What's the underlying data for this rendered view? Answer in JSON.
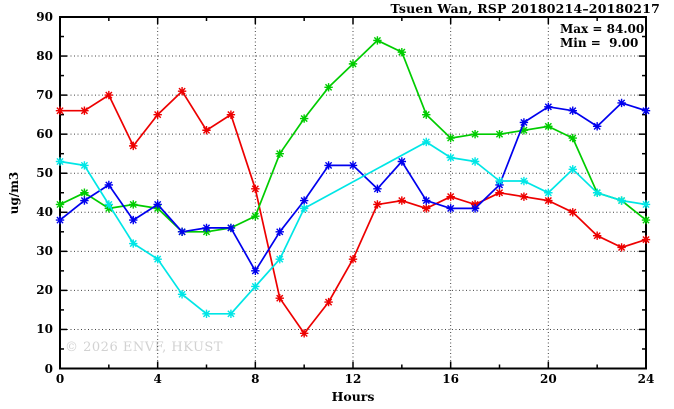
{
  "header": {
    "title": "Tsuen Wan, RSP 20180214–20180217"
  },
  "legend": {
    "max_label": "Max = 84.00",
    "min_label": "Min =  9.00"
  },
  "watermark": {
    "text": "© 2026 ENVF, HKUST",
    "color": "#d2d2d2"
  },
  "axes": {
    "ylabel": "ug/m3",
    "xlabel": "Hours"
  },
  "chart_data": {
    "type": "line",
    "title": "Tsuen Wan, RSP 20180214–20180217",
    "xlabel": "Hours",
    "ylabel": "ug/m3",
    "xlim": [
      0,
      24
    ],
    "ylim": [
      0,
      90
    ],
    "grid": true,
    "grid_x_at": [
      4,
      8,
      12,
      16,
      20
    ],
    "grid_y_at": [
      10,
      20,
      30,
      40,
      50,
      60,
      70,
      80
    ],
    "x_tick_labels": [
      0,
      4,
      8,
      12,
      16,
      20,
      24
    ],
    "x_minor_tick_step": 2,
    "y_tick_labels": [
      0,
      10,
      20,
      30,
      40,
      50,
      60,
      70,
      80,
      90
    ],
    "y_minor_tick_step": 5,
    "legend_position": "top-right-inside",
    "annotations": {
      "max": 84.0,
      "min": 9.0
    },
    "x": [
      0,
      1,
      2,
      3,
      4,
      5,
      6,
      7,
      8,
      9,
      10,
      11,
      12,
      13,
      14,
      15,
      16,
      17,
      18,
      19,
      20,
      21,
      22,
      23,
      24
    ],
    "series": [
      {
        "name": "series-red",
        "color": "#ed0000",
        "values": [
          66,
          66,
          70,
          57,
          65,
          71,
          61,
          65,
          46,
          18,
          9,
          17,
          28,
          42,
          43,
          41,
          44,
          42,
          45,
          44,
          43,
          40,
          34,
          31,
          33
        ]
      },
      {
        "name": "series-green",
        "color": "#00cc00",
        "values": [
          42,
          45,
          41,
          42,
          41,
          35,
          35,
          36,
          39,
          55,
          64,
          72,
          78,
          84,
          81,
          65,
          59,
          60,
          60,
          61,
          62,
          59,
          45,
          43,
          38
        ]
      },
      {
        "name": "series-blue",
        "color": "#0000ee",
        "values": [
          38,
          43,
          47,
          38,
          42,
          35,
          36,
          36,
          25,
          35,
          43,
          52,
          52,
          46,
          53,
          43,
          41,
          41,
          47,
          63,
          67,
          66,
          62,
          68,
          66
        ]
      },
      {
        "name": "series-cyan",
        "color": "#00e6e6",
        "values": [
          53,
          52,
          42,
          32,
          28,
          19,
          14,
          14,
          21,
          28,
          41,
          null,
          null,
          null,
          null,
          58,
          54,
          53,
          48,
          48,
          45,
          51,
          45,
          43,
          42
        ]
      }
    ]
  }
}
